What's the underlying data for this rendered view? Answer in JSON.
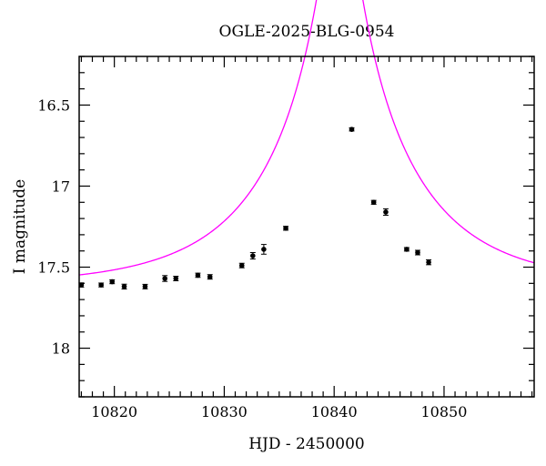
{
  "chart_data": {
    "type": "scatter",
    "title": "OGLE-2025-BLG-0954",
    "xlabel": "HJD - 2450000",
    "ylabel": "I magnitude",
    "xlim": [
      10816.8,
      10858.2
    ],
    "ylim": [
      18.3,
      16.2
    ],
    "y_inverted": true,
    "grid": false,
    "x_ticks": [
      10820,
      10830,
      10840,
      10850
    ],
    "y_ticks": [
      16.5,
      17,
      17.5,
      18
    ],
    "x_tick_labels": [
      "10820",
      "10830",
      "10840",
      "10850"
    ],
    "y_tick_labels": [
      "16.5",
      "17",
      "17.5",
      "18"
    ],
    "x_minor_step": 1,
    "y_minor_step": 0.1,
    "colors": {
      "model": "#ff00ff",
      "points": "#000000",
      "frame": "#000000"
    },
    "series": [
      {
        "kind": "points",
        "x": [
          10817.0,
          10818.8,
          10819.8,
          10820.9,
          10822.8,
          10824.6,
          10825.6,
          10827.6,
          10828.7,
          10831.6,
          10832.6,
          10833.6,
          10835.6,
          10841.6,
          10843.6,
          10844.7,
          10846.6,
          10847.6,
          10848.6
        ],
        "y": [
          17.61,
          17.61,
          17.59,
          17.62,
          17.62,
          17.57,
          17.57,
          17.55,
          17.56,
          17.49,
          17.43,
          17.39,
          17.26,
          16.65,
          17.1,
          17.16,
          17.39,
          17.41,
          17.47
        ],
        "err": [
          0.013,
          0.012,
          0.012,
          0.015,
          0.014,
          0.018,
          0.014,
          0.013,
          0.014,
          0.014,
          0.02,
          0.03,
          0.012,
          0.01,
          0.012,
          0.02,
          0.011,
          0.014,
          0.015
        ]
      },
      {
        "kind": "model",
        "model": "pspl",
        "params": {
          "t0": 10840.5,
          "tE": 12.0,
          "u0": 0.095,
          "I_base": 17.614
        },
        "x_range": [
          10816.8,
          10858.2
        ]
      }
    ]
  }
}
